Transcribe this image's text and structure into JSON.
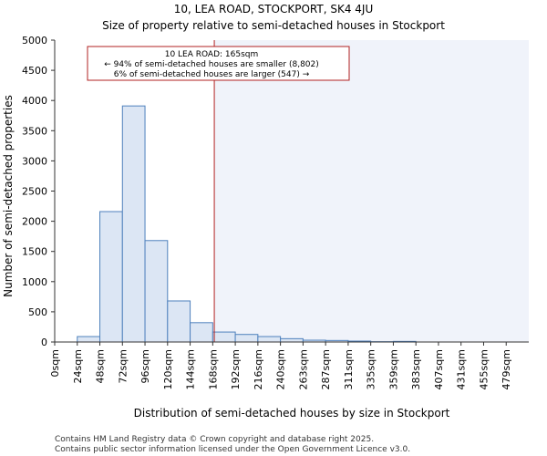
{
  "chart_data": {
    "type": "bar",
    "title": "10, LEA ROAD, STOCKPORT, SK4 4JU",
    "subtitle": "Size of property relative to semi-detached houses in Stockport",
    "xlabel": "Distribution of semi-detached houses by size in Stockport",
    "ylabel": "Number of semi-detached properties",
    "x_unit": "sqm",
    "tick_labels": [
      "0sqm",
      "24sqm",
      "48sqm",
      "72sqm",
      "96sqm",
      "120sqm",
      "144sqm",
      "168sqm",
      "192sqm",
      "216sqm",
      "240sqm",
      "263sqm",
      "287sqm",
      "311sqm",
      "335sqm",
      "359sqm",
      "383sqm",
      "407sqm",
      "431sqm",
      "455sqm",
      "479sqm"
    ],
    "y_ticks": [
      0,
      500,
      1000,
      1500,
      2000,
      2500,
      3000,
      3500,
      4000,
      4500,
      5000
    ],
    "ylim": [
      0,
      5000
    ],
    "values": [
      0,
      90,
      2160,
      3910,
      1680,
      680,
      320,
      165,
      125,
      90,
      55,
      30,
      25,
      15,
      5,
      10,
      0,
      0,
      0,
      0,
      0
    ],
    "marker_bin": 7.07,
    "marker_value": 165,
    "highlight_from_bin": 7.07,
    "grid": false,
    "colors": {
      "bar_fill": "#dce6f4",
      "bar_stroke": "#4f81bd",
      "marker_line": "#b22222",
      "highlight_fill": "#f0f3fa",
      "axis": "#333333",
      "annotation_border": "#b22222"
    },
    "annotation": {
      "line1": "10 LEA ROAD: 165sqm",
      "line2": "← 94% of semi-detached houses are smaller (8,802)",
      "line3": "6% of semi-detached houses are larger (547) →"
    }
  },
  "footer": {
    "line1": "Contains HM Land Registry data © Crown copyright and database right 2025.",
    "line2": "Contains public sector information licensed under the Open Government Licence v3.0."
  }
}
